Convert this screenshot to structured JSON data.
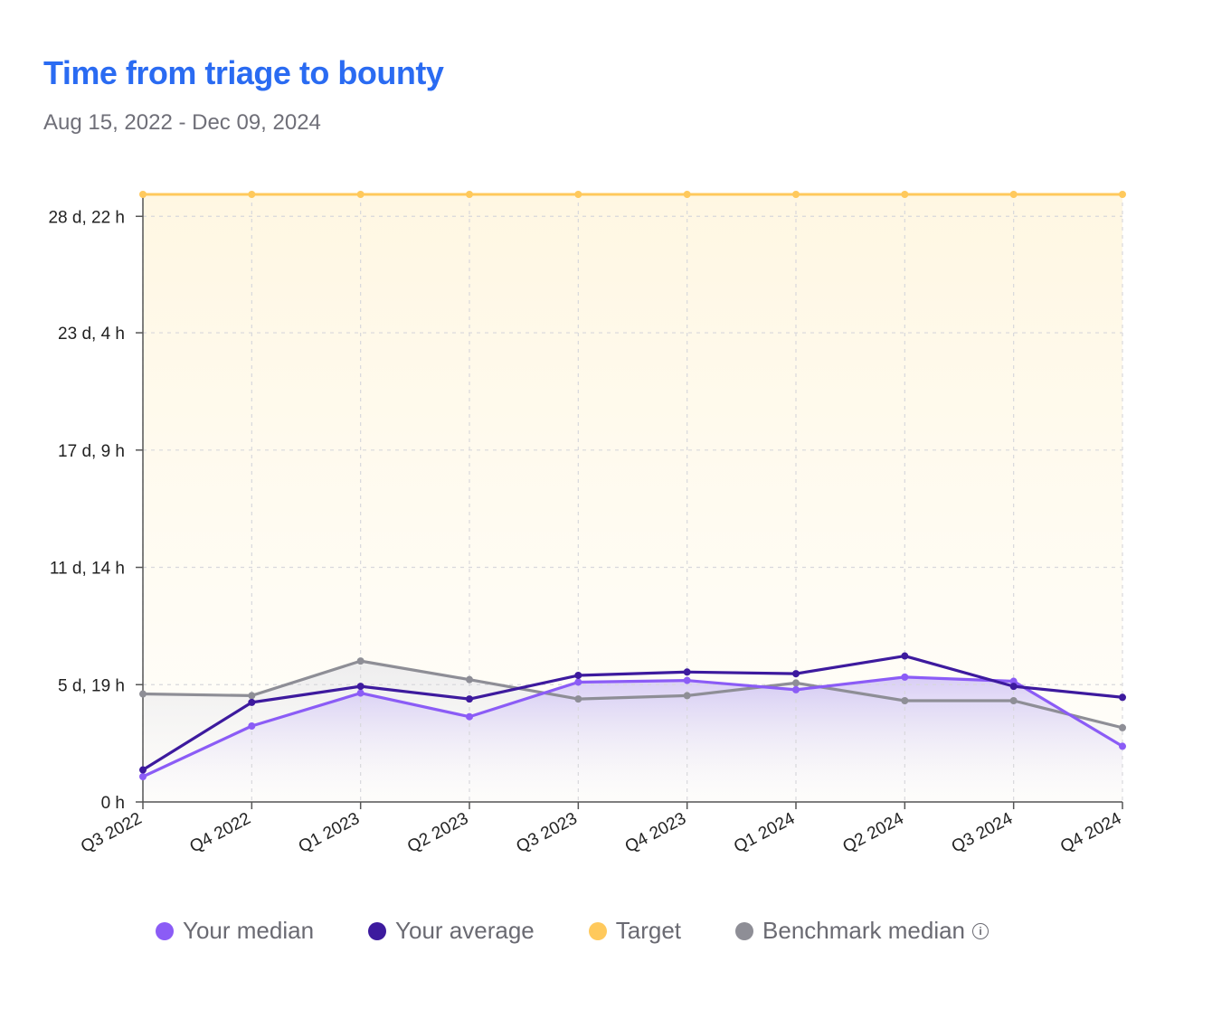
{
  "header": {
    "title": "Time from triage to bounty",
    "date_range": "Aug 15, 2022 - Dec 09, 2024"
  },
  "chart_data": {
    "type": "line",
    "title": "Time from triage to bounty",
    "subtitle": "Aug 15, 2022 - Dec 09, 2024",
    "categories": [
      "Q3 2022",
      "Q4 2022",
      "Q1 2023",
      "Q2 2023",
      "Q3 2023",
      "Q4 2023",
      "Q1 2024",
      "Q2 2024",
      "Q3 2024",
      "Q4 2024"
    ],
    "yaxis": {
      "unit": "hours",
      "range": [
        0,
        720
      ],
      "ticks": [
        {
          "value": 0,
          "label": "0 h"
        },
        {
          "value": 139,
          "label": "5 d, 19 h"
        },
        {
          "value": 278,
          "label": "11 d, 14 h"
        },
        {
          "value": 417,
          "label": "17 d, 9 h"
        },
        {
          "value": 556,
          "label": "23 d, 4 h"
        },
        {
          "value": 694,
          "label": "28 d, 22 h"
        }
      ]
    },
    "grid": true,
    "legend_position": "bottom",
    "series": [
      {
        "name": "Your median",
        "color": "#8b5cf6",
        "values": [
          30,
          90,
          129,
          101,
          142,
          144,
          133,
          148,
          143,
          66
        ]
      },
      {
        "name": "Your average",
        "color": "#3d1a9e",
        "values": [
          38,
          118,
          137,
          122,
          150,
          154,
          152,
          173,
          137,
          124
        ]
      },
      {
        "name": "Target",
        "color": "#ffc95c",
        "values": [
          720,
          720,
          720,
          720,
          720,
          720,
          720,
          720,
          720,
          720
        ]
      },
      {
        "name": "Benchmark median",
        "color": "#8e8e96",
        "values": [
          128,
          126,
          167,
          145,
          122,
          126,
          141,
          120,
          120,
          88
        ]
      }
    ]
  },
  "legend": {
    "items": [
      {
        "label": "Your median",
        "color": "#8b5cf6"
      },
      {
        "label": "Your average",
        "color": "#3d1a9e"
      },
      {
        "label": "Target",
        "color": "#ffc95c"
      },
      {
        "label": "Benchmark median",
        "color": "#8e8e96"
      }
    ]
  }
}
